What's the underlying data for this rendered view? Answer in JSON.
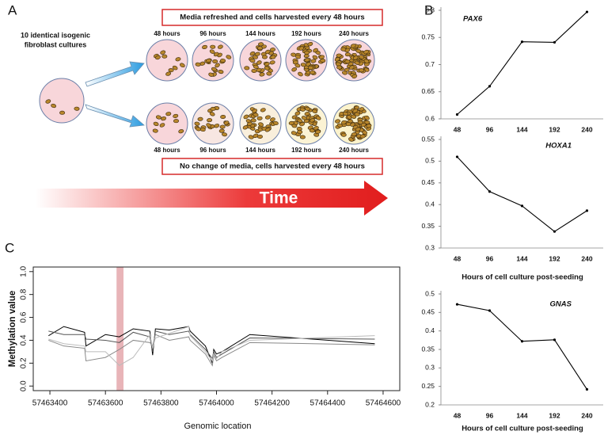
{
  "panel_labels": [
    "A",
    "B",
    "C"
  ],
  "diagram": {
    "source_label": [
      "10 identical isogenic",
      "fibroblast cultures"
    ],
    "top_box": "Media refreshed and cells harvested every 48 hours",
    "bottom_box": "No change of media, cells harvested every 48 hours",
    "top_hours": [
      "48 hours",
      "96 hours",
      "144 hours",
      "192 hours",
      "240 hours"
    ],
    "bottom_hours": [
      "48 hours",
      "96 hours",
      "144 hours",
      "192 hours",
      "240 hours"
    ],
    "arrow_label": "Time"
  },
  "chart_data": [
    {
      "type": "line",
      "title": "PAX6",
      "categories": [
        "48",
        "96",
        "144",
        "192",
        "240"
      ],
      "values": [
        0.608,
        0.66,
        0.742,
        0.741,
        0.797
      ],
      "color": "#000000",
      "ylim": [
        0.6,
        0.8
      ],
      "yticks": [
        0.6,
        0.65,
        0.7,
        0.75,
        0.8
      ]
    },
    {
      "type": "line",
      "title": "HOXA1",
      "categories": [
        "48",
        "96",
        "144",
        "192",
        "240"
      ],
      "values": [
        0.51,
        0.43,
        0.397,
        0.338,
        0.386
      ],
      "color": "#000000",
      "xlabel": "Hours of cell culture post-seeding",
      "ylim": [
        0.3,
        0.55
      ],
      "yticks": [
        0.3,
        0.35,
        0.4,
        0.45,
        0.5,
        0.55
      ]
    },
    {
      "type": "line",
      "title": "GNAS",
      "categories": [
        "48",
        "96",
        "144",
        "192",
        "240"
      ],
      "values": [
        0.472,
        0.455,
        0.372,
        0.376,
        0.242
      ],
      "color": "#000000",
      "xlabel": "Hours of cell culture post-seeding",
      "ylim": [
        0.2,
        0.5
      ],
      "yticks": [
        0.2,
        0.25,
        0.3,
        0.35,
        0.4,
        0.45,
        0.5
      ]
    },
    {
      "type": "multiline",
      "xlabel": "Genomic location",
      "ylabel": "Methylation value",
      "x": [
        57463395,
        57463450,
        57463525,
        57463530,
        57463600,
        57463650,
        57463700,
        57463760,
        57463770,
        57463780,
        57463830,
        57463900,
        57463905,
        57463960,
        57463985,
        57463990,
        57464000,
        57464020,
        57464120,
        57464570
      ],
      "series": [
        {
          "color": "#000000",
          "values": [
            0.44,
            0.52,
            0.47,
            0.35,
            0.45,
            0.43,
            0.5,
            0.48,
            0.27,
            0.5,
            0.49,
            0.52,
            0.48,
            0.35,
            0.2,
            0.32,
            0.28,
            0.3,
            0.45,
            0.37
          ]
        },
        {
          "color": "#555555",
          "values": [
            0.48,
            0.45,
            0.45,
            0.41,
            0.4,
            0.38,
            0.47,
            0.43,
            0.3,
            0.48,
            0.45,
            0.48,
            0.45,
            0.32,
            0.24,
            0.3,
            0.25,
            0.28,
            0.42,
            0.41
          ]
        },
        {
          "color": "#888888",
          "values": [
            0.4,
            0.35,
            0.33,
            0.22,
            0.25,
            0.32,
            0.4,
            0.38,
            0.35,
            0.45,
            0.4,
            0.43,
            0.4,
            0.28,
            0.18,
            0.27,
            0.22,
            0.25,
            0.38,
            0.36
          ]
        },
        {
          "color": "#bbbbbb",
          "values": [
            0.41,
            0.37,
            0.35,
            0.3,
            0.3,
            0.18,
            0.25,
            0.45,
            0.33,
            0.42,
            0.46,
            0.52,
            0.44,
            0.3,
            0.22,
            0.28,
            0.24,
            0.3,
            0.4,
            0.44
          ]
        }
      ],
      "highlight_x": [
        57463640,
        57463665
      ],
      "highlight_color": "#e8b4b8",
      "xlim": [
        57463340,
        57464660
      ],
      "xticks": [
        57463400,
        57463600,
        57463800,
        57464000,
        57464200,
        57464400,
        57464600
      ],
      "ylim": [
        -0.04,
        1.04
      ],
      "yticks": [
        {
          "value": 0,
          "label": "0.0"
        },
        0.2,
        0.4,
        0.6,
        0.8,
        {
          "value": 1,
          "label": "1.0"
        }
      ]
    }
  ]
}
